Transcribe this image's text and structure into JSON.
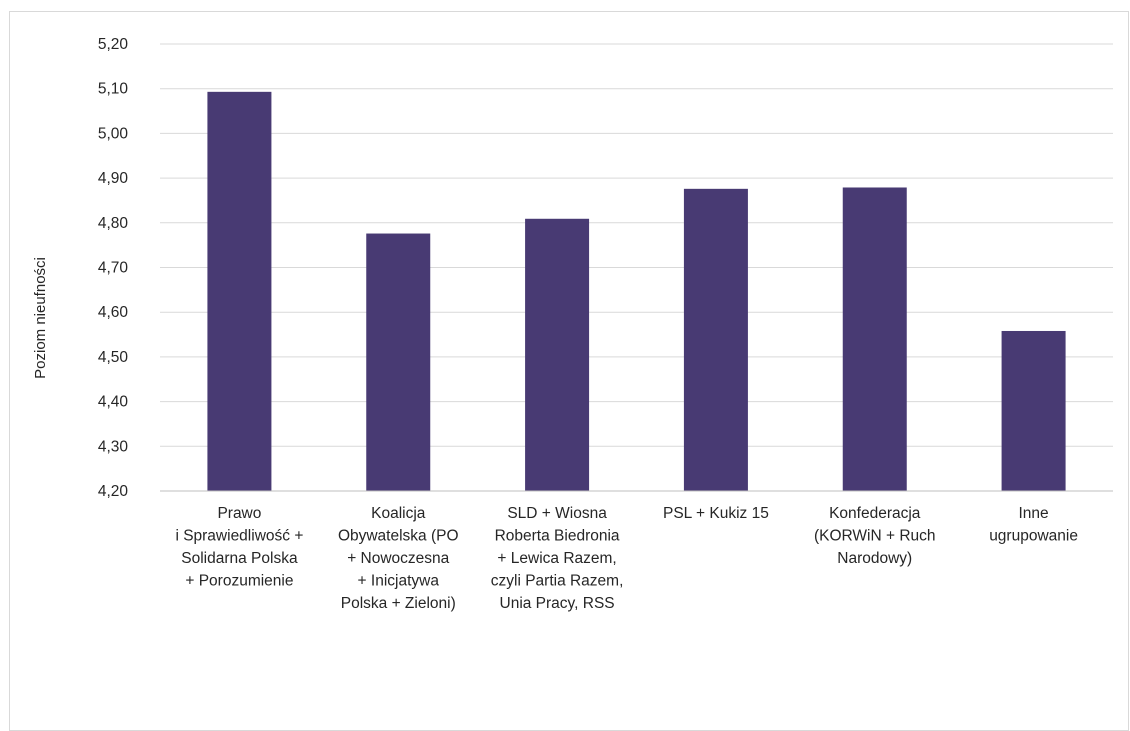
{
  "chart_data": {
    "type": "bar",
    "title": "",
    "xlabel": "",
    "ylabel": "Poziom nieufności",
    "ylim": [
      4.2,
      5.2
    ],
    "yticks": [
      "4,20",
      "4,30",
      "4,40",
      "4,50",
      "4,60",
      "4,70",
      "4,80",
      "4,90",
      "5,00",
      "5,10",
      "5,20"
    ],
    "grid": true,
    "bar_color": "#483a73",
    "categories": [
      [
        "Prawo",
        "i Sprawiedliwość +",
        "Solidarna Polska",
        "+ Porozumienie"
      ],
      [
        "Koalicja",
        "Obywatelska (PO",
        "+ Nowoczesna",
        "+ Inicjatywa",
        "Polska + Zieloni)"
      ],
      [
        "SLD + Wiosna",
        "Roberta Biedronia",
        "+ Lewica Razem,",
        "czyli Partia Razem,",
        "Unia Pracy, RSS"
      ],
      [
        "PSL + Kukiz 15"
      ],
      [
        "Konfederacja",
        "(KORWiN + Ruch",
        "Narodowy)"
      ],
      [
        "Inne",
        "ugrupowanie"
      ]
    ],
    "values": [
      5.093,
      4.776,
      4.809,
      4.876,
      4.879,
      4.558
    ]
  }
}
